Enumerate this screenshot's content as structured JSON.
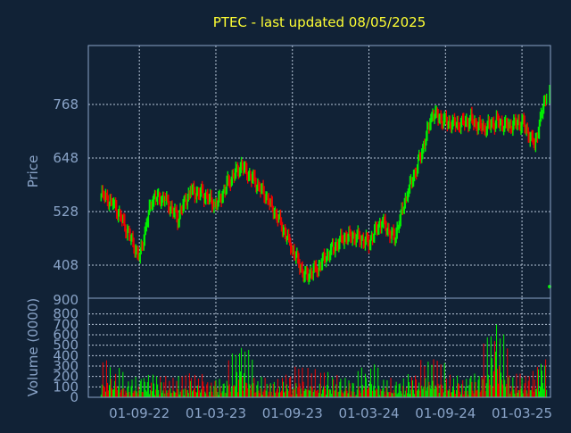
{
  "colors": {
    "background": "#112236",
    "plot_border": "#8aa4c8",
    "grid": "#b8c6d8",
    "title": "#ffff33",
    "axis_text": "#8aa4c8",
    "up": "#00ee00",
    "down": "#ee0000"
  },
  "chart_data": [
    {
      "type": "candlestick",
      "title": "PTEC - last updated 08/05/2025",
      "ylabel": "Price",
      "xlabel": "",
      "ylim": [
        334,
        900
      ],
      "yticks": [
        408,
        528,
        648,
        768
      ],
      "ytick_labels": [
        "408",
        "528",
        "648",
        "768"
      ],
      "top_label": "900",
      "grid": true,
      "series": [
        {
          "name": "",
          "x": [
            "01-06-22",
            "01-07-22",
            "01-08-22",
            "01-09-22",
            "01-10-22",
            "01-11-22",
            "01-12-22",
            "01-01-23",
            "01-02-23",
            "01-03-23",
            "01-04-23",
            "01-05-23",
            "01-06-23",
            "01-07-23",
            "01-08-23",
            "01-09-23",
            "01-10-23",
            "01-11-23",
            "01-12-23",
            "01-01-24",
            "01-02-24",
            "01-03-24",
            "01-04-24",
            "01-05-24",
            "01-06-24",
            "01-07-24",
            "01-08-24",
            "01-09-24",
            "01-10-24",
            "01-11-24",
            "01-12-24",
            "01-01-25",
            "01-02-25",
            "01-03-25",
            "01-04-25",
            "01-05-25"
          ],
          "values": [
            565,
            548,
            485,
            428,
            555,
            560,
            512,
            575,
            568,
            540,
            596,
            628,
            600,
            555,
            510,
            440,
            385,
            400,
            442,
            470,
            472,
            460,
            505,
            470,
            565,
            650,
            745,
            732,
            720,
            735,
            712,
            730,
            720,
            728,
            680,
            800
          ]
        }
      ]
    },
    {
      "type": "bar",
      "ylabel": "Volume (0000)",
      "ylim": [
        0,
        900
      ],
      "yticks": [
        0,
        100,
        200,
        300,
        400,
        500,
        600,
        700,
        800
      ],
      "ytick_labels": [
        "0",
        "100",
        "200",
        "300",
        "400",
        "500",
        "600",
        "700",
        "800"
      ],
      "xtick_labels": [
        "01-09-22",
        "01-03-23",
        "01-09-23",
        "01-03-24",
        "01-09-24",
        "01-03-25"
      ],
      "grid": true,
      "series": [
        {
          "name": "",
          "x": [
            "01-06-22",
            "01-07-22",
            "01-08-22",
            "01-09-22",
            "01-10-22",
            "01-11-22",
            "01-12-22",
            "01-01-23",
            "01-02-23",
            "01-03-23",
            "01-04-23",
            "01-05-23",
            "01-06-23",
            "01-07-23",
            "01-08-23",
            "01-09-23",
            "01-10-23",
            "01-11-23",
            "01-12-23",
            "01-01-24",
            "01-02-24",
            "01-03-24",
            "01-04-24",
            "01-05-24",
            "01-06-24",
            "01-07-24",
            "01-08-24",
            "01-09-24",
            "01-10-24",
            "01-11-24",
            "01-12-24",
            "01-01-25",
            "01-02-25",
            "01-03-25",
            "01-04-25",
            "01-05-25"
          ],
          "values": [
            270,
            320,
            130,
            200,
            220,
            180,
            140,
            220,
            160,
            150,
            180,
            560,
            190,
            150,
            170,
            260,
            250,
            200,
            230,
            190,
            150,
            340,
            170,
            140,
            190,
            250,
            360,
            220,
            140,
            200,
            250,
            820,
            180,
            200,
            230,
            480
          ]
        }
      ]
    }
  ]
}
